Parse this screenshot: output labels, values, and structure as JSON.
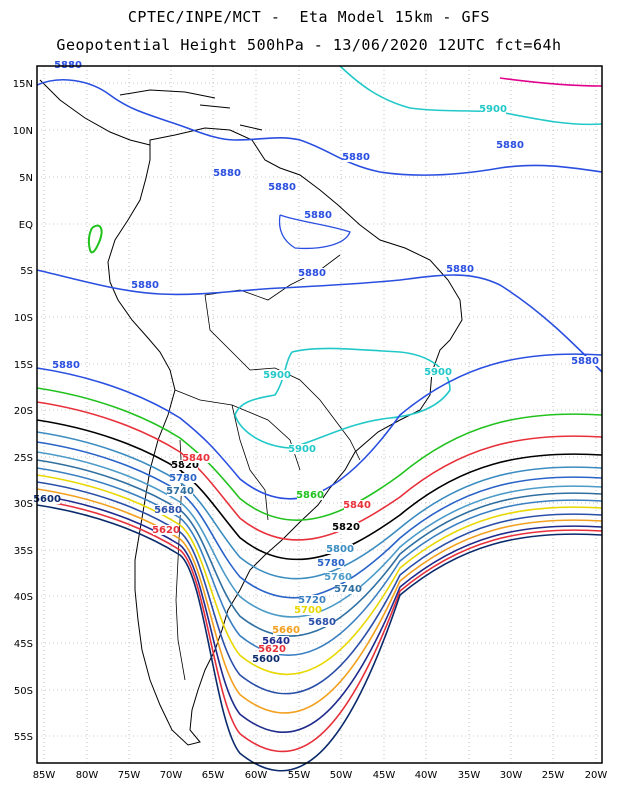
{
  "header": {
    "line1": "CPTEC/INPE/MCT -  Eta Model 15km - GFS",
    "line2": "Geopotential Height 500hPa - 13/06/2020 12UTC fct=64h"
  },
  "axes": {
    "lon_labels": [
      "85W",
      "80W",
      "75W",
      "70W",
      "65W",
      "60W",
      "55W",
      "50W",
      "45W",
      "40W",
      "35W",
      "30W",
      "25W",
      "20W"
    ],
    "lat_labels": [
      "15N",
      "10N",
      "5N",
      "EQ",
      "5S",
      "10S",
      "15S",
      "20S",
      "25S",
      "30S",
      "35S",
      "40S",
      "45S",
      "50S",
      "55S"
    ],
    "grid": "dotted"
  },
  "colors": {
    "5600": "#0a2a6b",
    "5620": "#e8303a",
    "5640": "#1e2a8c",
    "5660": "#f2a01e",
    "5680": "#2a4fa8",
    "5700": "#e8d800",
    "5720": "#3a7fc0",
    "5740": "#2f6fa0",
    "5760": "#4b9ac8",
    "5780": "#2a64c8",
    "5800": "#3b8cc0",
    "5820": "#000000",
    "5840": "#e8303a",
    "5860": "#22c21e",
    "5880": "#2a4fe0",
    "5900": "#22c8c8",
    "5920": "#e0008c"
  },
  "contour_labels": [
    {
      "text": "5880",
      "color": "5880"
    },
    {
      "text": "5900",
      "color": "5900"
    },
    {
      "text": "5880",
      "color": "5880"
    },
    {
      "text": "5880",
      "color": "5880"
    },
    {
      "text": "5880",
      "color": "5880"
    },
    {
      "text": "5880",
      "color": "5880"
    },
    {
      "text": "5880",
      "color": "5880"
    },
    {
      "text": "5880",
      "color": "5880"
    },
    {
      "text": "5880",
      "color": "5880"
    },
    {
      "text": "5880",
      "color": "5880"
    },
    {
      "text": "5880",
      "color": "5880"
    },
    {
      "text": "5900",
      "color": "5900"
    },
    {
      "text": "5900",
      "color": "5900"
    },
    {
      "text": "5900",
      "color": "5900"
    },
    {
      "text": "5880",
      "color": "5880"
    },
    {
      "text": "5860",
      "color": "5860"
    },
    {
      "text": "5840",
      "color": "5840"
    },
    {
      "text": "5820",
      "color": "5820"
    },
    {
      "text": "5800",
      "color": "5800"
    },
    {
      "text": "5780",
      "color": "5780"
    },
    {
      "text": "5760",
      "color": "5760"
    },
    {
      "text": "5740",
      "color": "5740"
    },
    {
      "text": "5720",
      "color": "5720"
    },
    {
      "text": "5700",
      "color": "5700"
    },
    {
      "text": "5680",
      "color": "5680"
    },
    {
      "text": "5660",
      "color": "5660"
    },
    {
      "text": "5640",
      "color": "5640"
    },
    {
      "text": "5620",
      "color": "5620"
    },
    {
      "text": "5600",
      "color": "5600"
    },
    {
      "text": "5600",
      "color": "5600"
    },
    {
      "text": "5820",
      "color": "5820"
    },
    {
      "text": "5840",
      "color": "5840"
    },
    {
      "text": "5780",
      "color": "5780"
    },
    {
      "text": "5740",
      "color": "5740"
    },
    {
      "text": "5680",
      "color": "5680"
    },
    {
      "text": "5620",
      "color": "5620"
    }
  ]
}
